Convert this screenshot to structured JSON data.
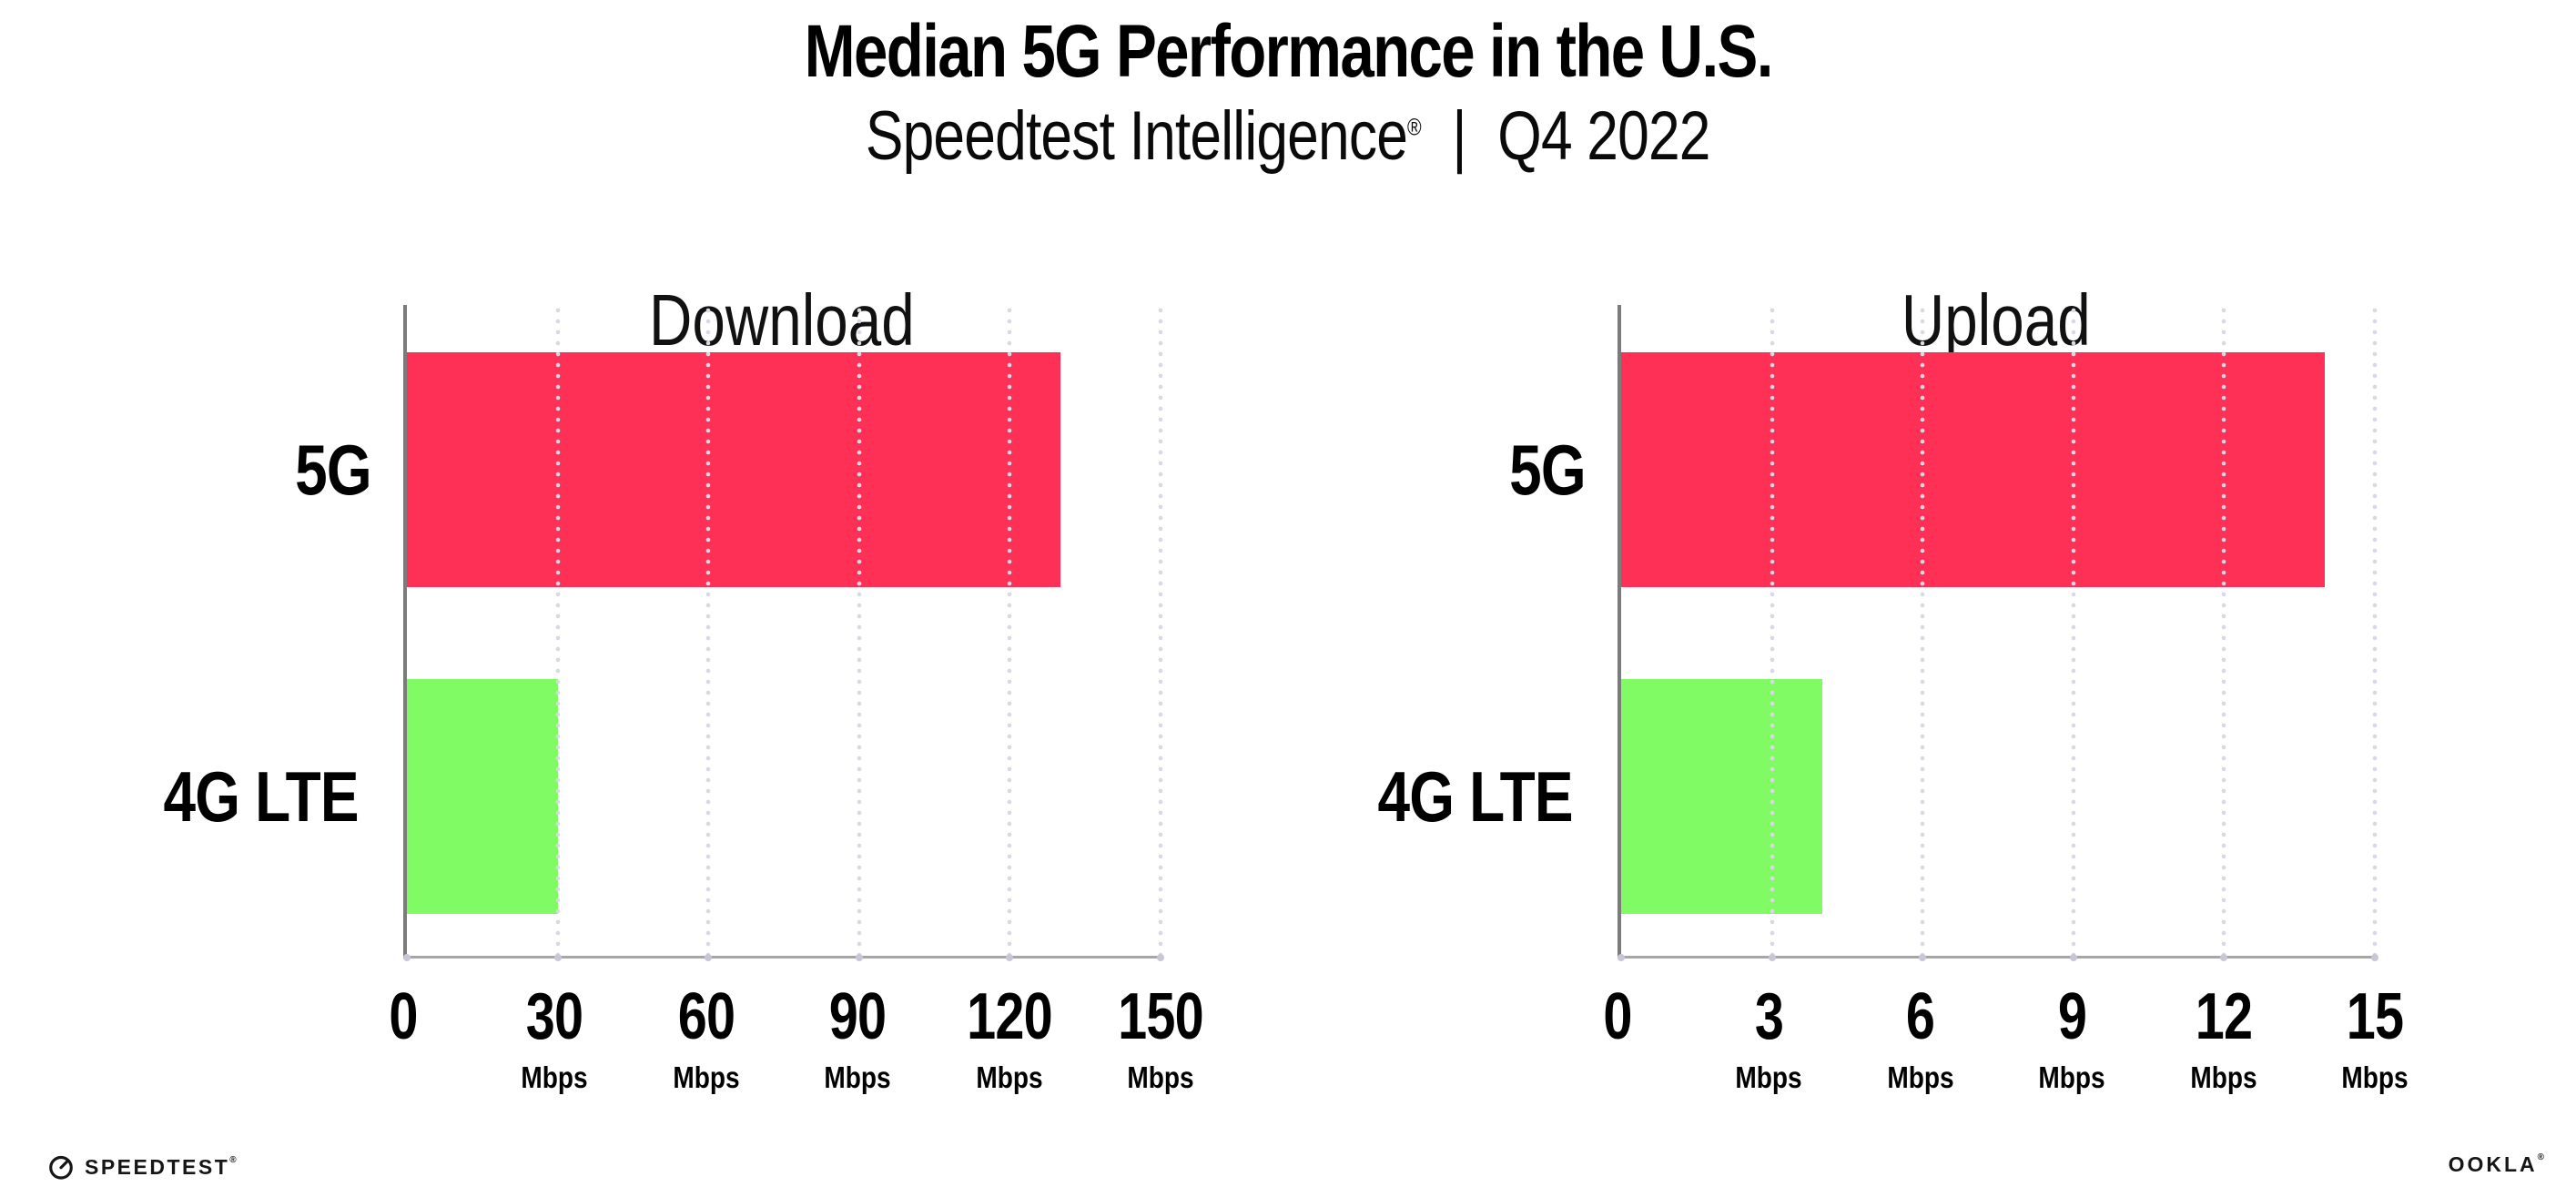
{
  "page": {
    "title": "Median 5G Performance in the U.S.",
    "subtitle": {
      "product": "Speedtest Intelligence",
      "registered_mark": "®",
      "separator": "|",
      "quarter": "Q4 2022"
    }
  },
  "colors": {
    "bar_5g": "#ff3056",
    "bar_4g_lte": "#80fb64",
    "gridline_dot": "#d9d9e6",
    "x_axis_line": "#a6a6a6",
    "y_axis_line": "#7b7b7b",
    "text": "#000000"
  },
  "chart_data": [
    {
      "type": "bar",
      "orientation": "horizontal",
      "title": "Download",
      "categories": [
        "5G",
        "4G LTE"
      ],
      "values": [
        130,
        30
      ],
      "unit": "Mbps",
      "xlim": [
        0,
        150
      ],
      "xticks": [
        0,
        30,
        60,
        90,
        120,
        150
      ],
      "grid": "vertical-dotted",
      "legend": "none",
      "series_colors": [
        "#ff3056",
        "#80fb64"
      ]
    },
    {
      "type": "bar",
      "orientation": "horizontal",
      "title": "Upload",
      "categories": [
        "5G",
        "4G LTE"
      ],
      "values": [
        14,
        4
      ],
      "unit": "Mbps",
      "xlim": [
        0,
        15
      ],
      "xticks": [
        0,
        3,
        6,
        9,
        12,
        15
      ],
      "grid": "vertical-dotted",
      "legend": "none",
      "series_colors": [
        "#ff3056",
        "#80fb64"
      ]
    }
  ],
  "footer": {
    "speedtest_logo_text": "SPEEDTEST",
    "speedtest_trademark": "®",
    "ookla_logo_text": "OOKLA",
    "ookla_trademark": "®"
  }
}
